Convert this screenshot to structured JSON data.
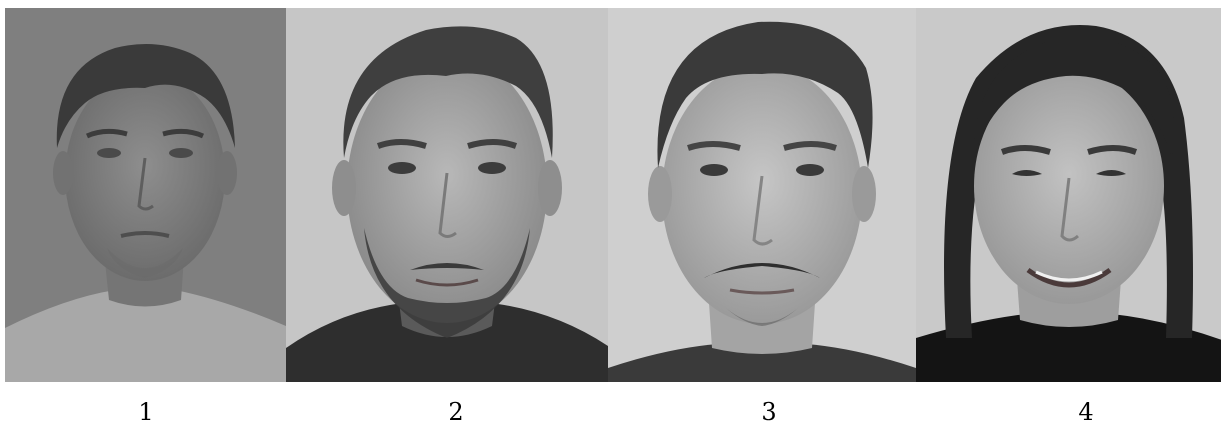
{
  "panels": [
    {
      "caption": "1"
    },
    {
      "caption": "2"
    },
    {
      "caption": "3"
    },
    {
      "caption": "4"
    }
  ]
}
